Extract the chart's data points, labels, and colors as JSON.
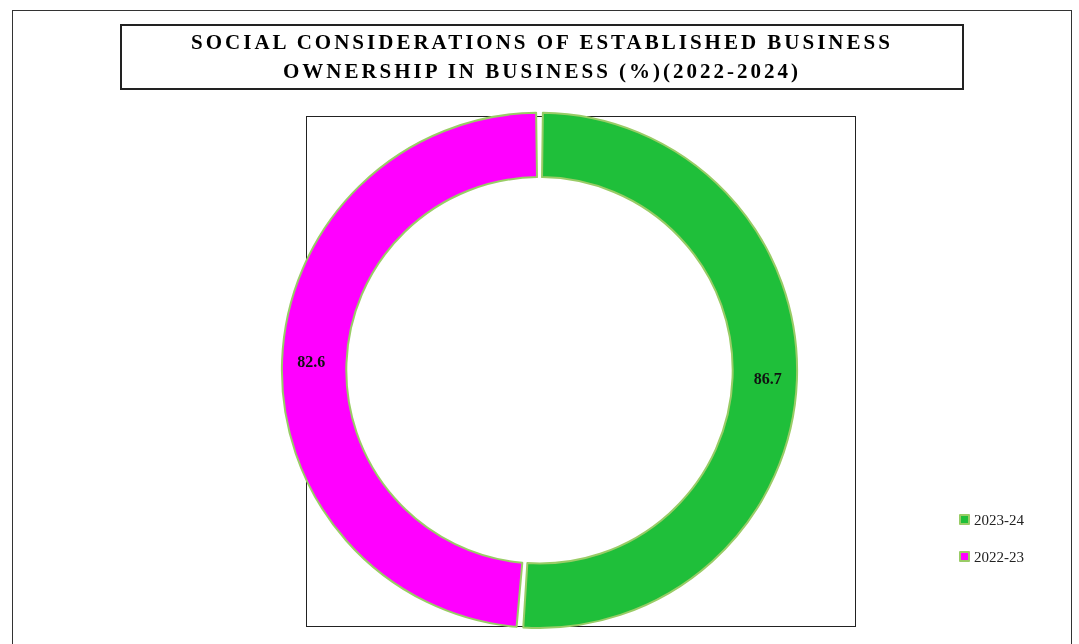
{
  "chart_data": {
    "type": "donut",
    "title": "SOCIAL CONSIDERATIONS OF ESTABLISHED BUSINESS OWNERSHIP IN BUSINESS (%)(2022-2024)",
    "categories": [
      "2023-24",
      "2022-23"
    ],
    "values": [
      86.7,
      82.6
    ],
    "colors": [
      "#1fbf3a",
      "#ff00ff"
    ],
    "data_labels": true,
    "legend": "bottom right"
  }
}
